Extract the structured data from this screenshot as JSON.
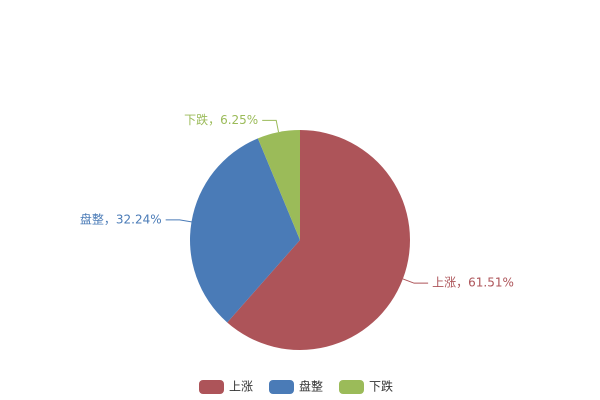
{
  "chart_data": {
    "type": "pie",
    "categories": [
      "上涨",
      "盘整",
      "下跌"
    ],
    "values": [
      61.51,
      32.24,
      6.25
    ],
    "value_labels": [
      "上涨，61.51%",
      "盘整，32.24%",
      "下跌，6.25%"
    ],
    "colors": [
      "#ad5459",
      "#4a7bb7",
      "#9bbb59"
    ],
    "legend": "bottom"
  }
}
